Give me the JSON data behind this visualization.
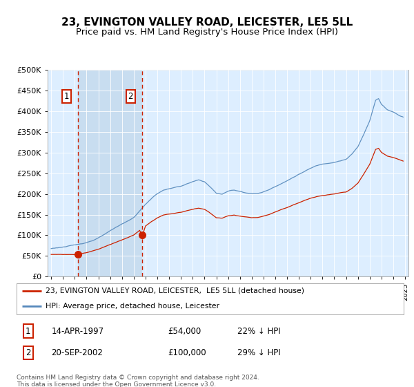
{
  "title": "23, EVINGTON VALLEY ROAD, LEICESTER, LE5 5LL",
  "subtitle": "Price paid vs. HM Land Registry's House Price Index (HPI)",
  "ylim": [
    0,
    500000
  ],
  "yticks": [
    0,
    50000,
    100000,
    150000,
    200000,
    250000,
    300000,
    350000,
    400000,
    450000,
    500000
  ],
  "ytick_labels": [
    "£0",
    "£50K",
    "£100K",
    "£150K",
    "£200K",
    "£250K",
    "£300K",
    "£350K",
    "£400K",
    "£450K",
    "£500K"
  ],
  "xlim_start": 1994.7,
  "xlim_end": 2025.3,
  "hpi_color": "#5588bb",
  "price_color": "#cc2200",
  "bg_color": "#ddeeff",
  "shade_color": "#c8ddf0",
  "transaction1_x": 1997.28,
  "transaction1_y": 54000,
  "transaction2_x": 2002.72,
  "transaction2_y": 100000,
  "legend_line1": "23, EVINGTON VALLEY ROAD, LEICESTER,  LE5 5LL (detached house)",
  "legend_line2": "HPI: Average price, detached house, Leicester",
  "footer": "Contains HM Land Registry data © Crown copyright and database right 2024.\nThis data is licensed under the Open Government Licence v3.0.",
  "title_fontsize": 11,
  "subtitle_fontsize": 9.5
}
